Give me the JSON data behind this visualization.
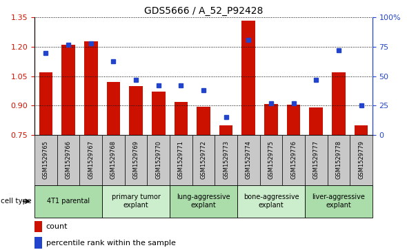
{
  "title": "GDS5666 / A_52_P92428",
  "samples": [
    "GSM1529765",
    "GSM1529766",
    "GSM1529767",
    "GSM1529768",
    "GSM1529769",
    "GSM1529770",
    "GSM1529771",
    "GSM1529772",
    "GSM1529773",
    "GSM1529774",
    "GSM1529775",
    "GSM1529776",
    "GSM1529777",
    "GSM1529778",
    "GSM1529779"
  ],
  "counts": [
    1.07,
    1.21,
    1.23,
    1.02,
    1.0,
    0.97,
    0.92,
    0.895,
    0.8,
    1.335,
    0.91,
    0.905,
    0.89,
    1.07,
    0.8
  ],
  "percentiles": [
    70,
    77,
    78,
    63,
    47,
    42,
    42,
    38,
    15,
    81,
    27,
    27,
    47,
    72,
    25
  ],
  "ylim_left": [
    0.75,
    1.35
  ],
  "ylim_right": [
    0,
    100
  ],
  "yticks_left": [
    0.75,
    0.9,
    1.05,
    1.2,
    1.35
  ],
  "yticks_right": [
    0,
    25,
    50,
    75,
    100
  ],
  "bar_color": "#cc1100",
  "dot_color": "#2244cc",
  "cell_groups": [
    {
      "label": "4T1 parental",
      "start": 0,
      "end": 2,
      "color": "#aaddaa"
    },
    {
      "label": "primary tumor\nexplant",
      "start": 3,
      "end": 5,
      "color": "#cceecc"
    },
    {
      "label": "lung-aggressive\nexplant",
      "start": 6,
      "end": 8,
      "color": "#aaddaa"
    },
    {
      "label": "bone-aggressive\nexplant",
      "start": 9,
      "end": 11,
      "color": "#cceecc"
    },
    {
      "label": "liver-aggressive\nexplant",
      "start": 12,
      "end": 14,
      "color": "#aaddaa"
    }
  ],
  "legend_count_label": "count",
  "legend_pct_label": "percentile rank within the sample",
  "cell_type_label": "cell type"
}
